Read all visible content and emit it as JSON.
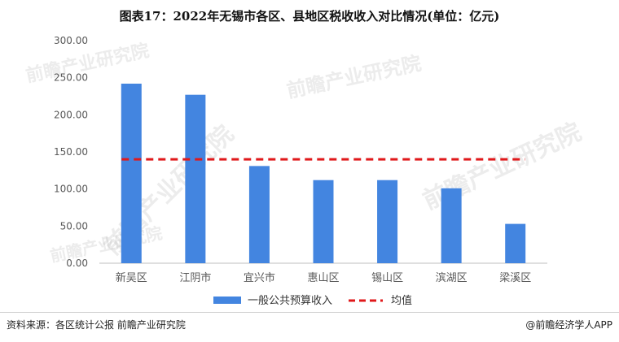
{
  "title": "图表17：2022年无锡市各区、县地区税收收入对比情况(单位：亿元)",
  "source": "资料来源：各区统计公报 前瞻产业研究院",
  "credit": "@前瞻经济学人APP",
  "watermark": "前瞻产业研究院",
  "colors": {
    "bar": "#4385e0",
    "mean": "#e0191b",
    "axis": "#bfbfbf",
    "tick_text": "#595959"
  },
  "chart_data": {
    "type": "bar",
    "categories": [
      "新吴区",
      "江阴市",
      "宜兴市",
      "惠山区",
      "锡山区",
      "滨湖区",
      "梁溪区"
    ],
    "series": [
      {
        "name": "一般公共预算收入",
        "type": "bar",
        "values": [
          242,
          227,
          131,
          112,
          112,
          101,
          53
        ]
      },
      {
        "name": "均值",
        "type": "line",
        "style": "dashed",
        "values": [
          140,
          140,
          140,
          140,
          140,
          140,
          140
        ]
      }
    ],
    "yticks": [
      "0.00",
      "50.00",
      "100.00",
      "150.00",
      "200.00",
      "250.00",
      "300.00"
    ],
    "ylim": [
      0,
      300
    ],
    "grid": false,
    "legend_position": "bottom"
  }
}
